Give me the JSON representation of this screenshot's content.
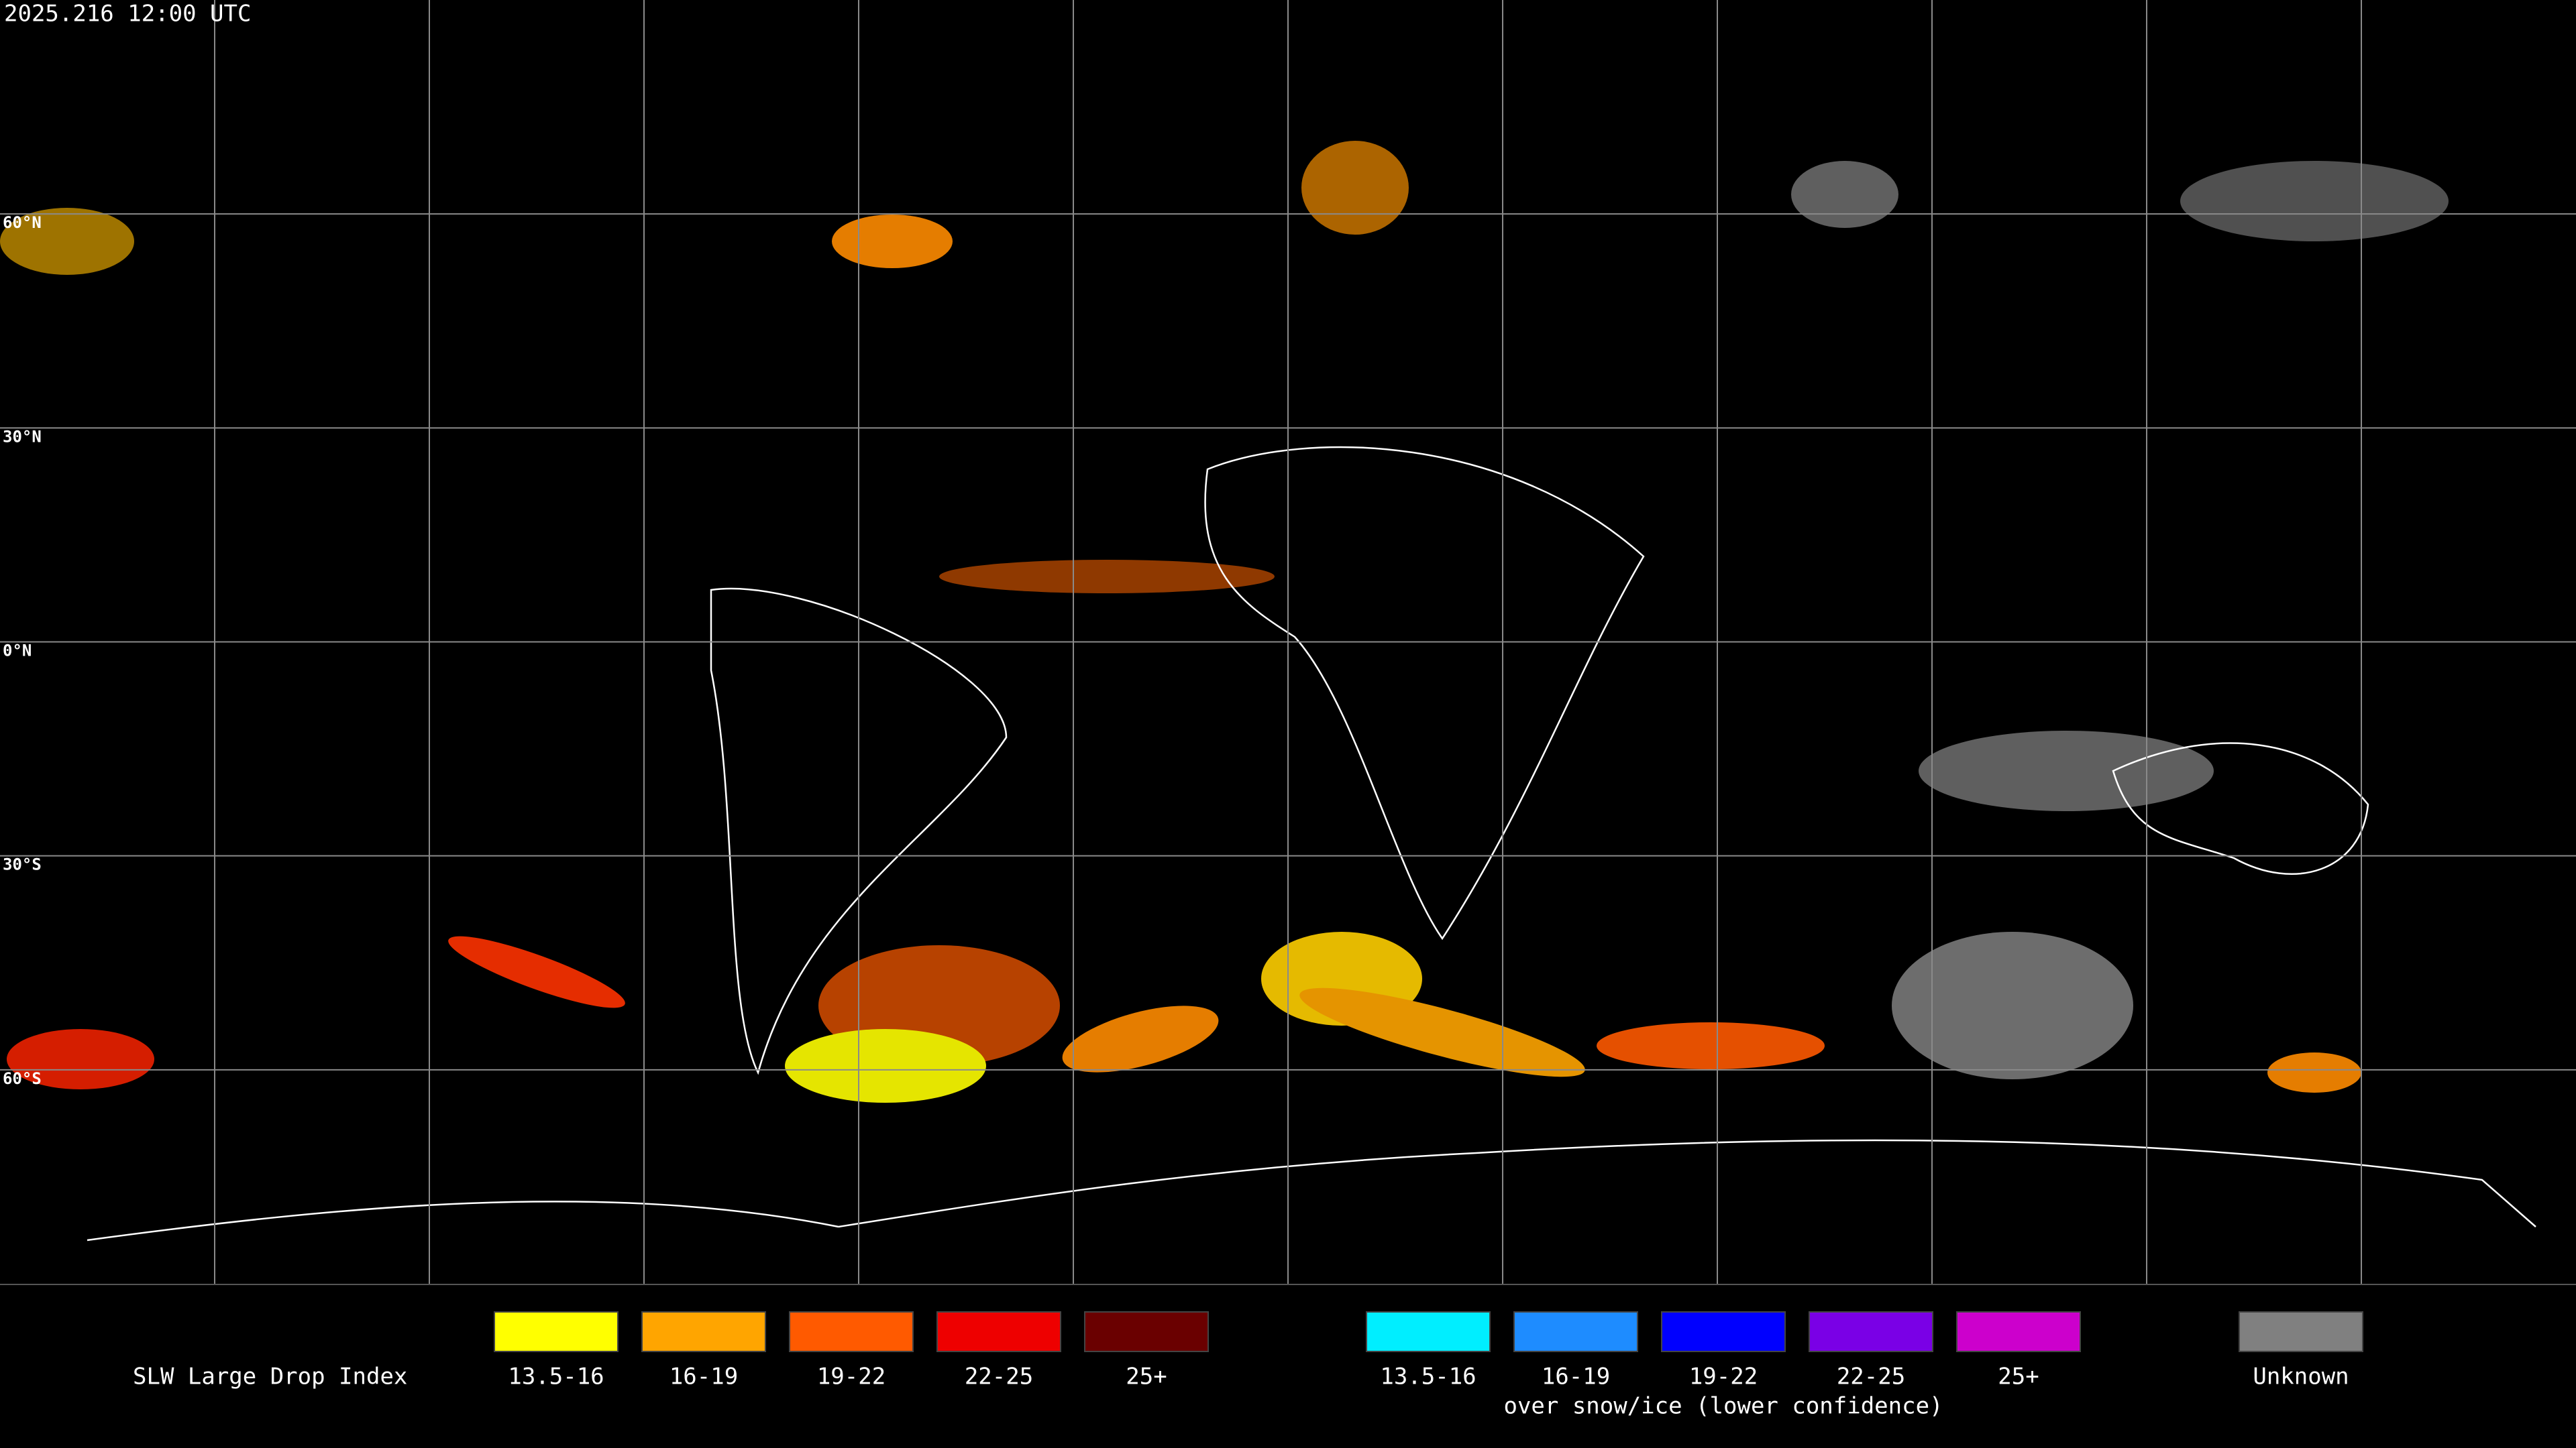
{
  "header": {
    "timestamp": "2025.216 12:00 UTC"
  },
  "map": {
    "lat_labels": [
      "60°N",
      "30°N",
      "0°N",
      "30°S",
      "60°S"
    ]
  },
  "legend": {
    "title": "SLW Large Drop Index",
    "items": [
      {
        "label": "13.5-16",
        "color": "#ffff00"
      },
      {
        "label": "16-19",
        "color": "#ffa500"
      },
      {
        "label": "19-22",
        "color": "#ff5a00"
      },
      {
        "label": "22-25",
        "color": "#ee0000"
      },
      {
        "label": "25+",
        "color": "#6a0000"
      }
    ],
    "snow_items": [
      {
        "label": "13.5-16",
        "color": "#00eeff"
      },
      {
        "label": "16-19",
        "color": "#1e8cff"
      },
      {
        "label": "19-22",
        "color": "#0000ff"
      },
      {
        "label": "22-25",
        "color": "#7a00e6"
      },
      {
        "label": "25+",
        "color": "#cc00cc"
      }
    ],
    "snow_caption": "over snow/ice (lower confidence)",
    "unknown": {
      "label": "Unknown",
      "color": "#808080"
    }
  }
}
